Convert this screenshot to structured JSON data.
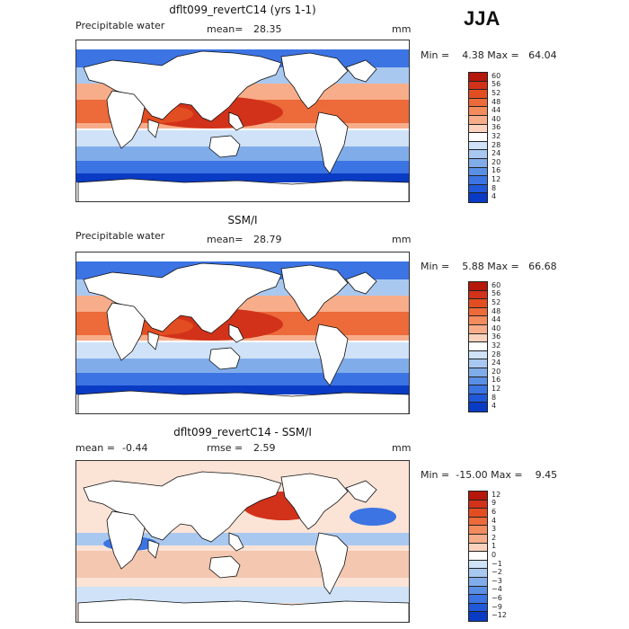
{
  "season": "JJA",
  "panels": [
    {
      "title": "dflt099_revertC14 (yrs 1-1)",
      "left_label": "Precipitable water",
      "mean_label": "mean=",
      "mean_value": "28.35",
      "rmse_label": "",
      "rmse_value": "",
      "units": "mm",
      "stats": "Min =    4.38 Max =   64.04",
      "colorbar_ticks": [
        "60",
        "56",
        "52",
        "48",
        "44",
        "40",
        "36",
        "32",
        "28",
        "24",
        "20",
        "16",
        "12",
        "8",
        "4"
      ],
      "colors": [
        "#8b0000",
        "#b5170a",
        "#d2321a",
        "#e24e22",
        "#ed6a3a",
        "#f48b5c",
        "#f8ad8a",
        "#fbd2bd",
        "#ffffff",
        "#cfe2f7",
        "#a8c8f0",
        "#80acea",
        "#5a8fe6",
        "#3c74e3",
        "#1f59d9",
        "#0a3bc4",
        "#001a99"
      ]
    },
    {
      "title": "SSM/I",
      "left_label": "Precipitable water",
      "mean_label": "mean=",
      "mean_value": "28.79",
      "rmse_label": "",
      "rmse_value": "",
      "units": "mm",
      "stats": "Min =    5.88 Max =   66.68",
      "colorbar_ticks": [
        "60",
        "56",
        "52",
        "48",
        "44",
        "40",
        "36",
        "32",
        "28",
        "24",
        "20",
        "16",
        "12",
        "8",
        "4"
      ],
      "colors": [
        "#8b0000",
        "#b5170a",
        "#d2321a",
        "#e24e22",
        "#ed6a3a",
        "#f48b5c",
        "#f8ad8a",
        "#fbd2bd",
        "#ffffff",
        "#cfe2f7",
        "#a8c8f0",
        "#80acea",
        "#5a8fe6",
        "#3c74e3",
        "#1f59d9",
        "#0a3bc4",
        "#001a99"
      ]
    },
    {
      "title": "dflt099_revertC14 - SSM/I",
      "left_label": "",
      "mean_label": "mean =",
      "mean_value": "-0.44",
      "rmse_label": "rmse =",
      "rmse_value": "2.59",
      "units": "mm",
      "stats": "Min =  -15.00 Max =    9.45",
      "colorbar_ticks": [
        "12",
        "9",
        "6",
        "4",
        "3",
        "2",
        "1",
        "0",
        "−1",
        "−2",
        "−3",
        "−4",
        "−6",
        "−9",
        "−12"
      ],
      "colors": [
        "#8b0000",
        "#b5170a",
        "#d2321a",
        "#e24e22",
        "#ed6a3a",
        "#f48b5c",
        "#f8ad8a",
        "#fbd2bd",
        "#ffffff",
        "#cfe2f7",
        "#a8c8f0",
        "#80acea",
        "#5a8fe6",
        "#3c74e3",
        "#1f59d9",
        "#0a3bc4",
        "#001a99"
      ]
    }
  ]
}
